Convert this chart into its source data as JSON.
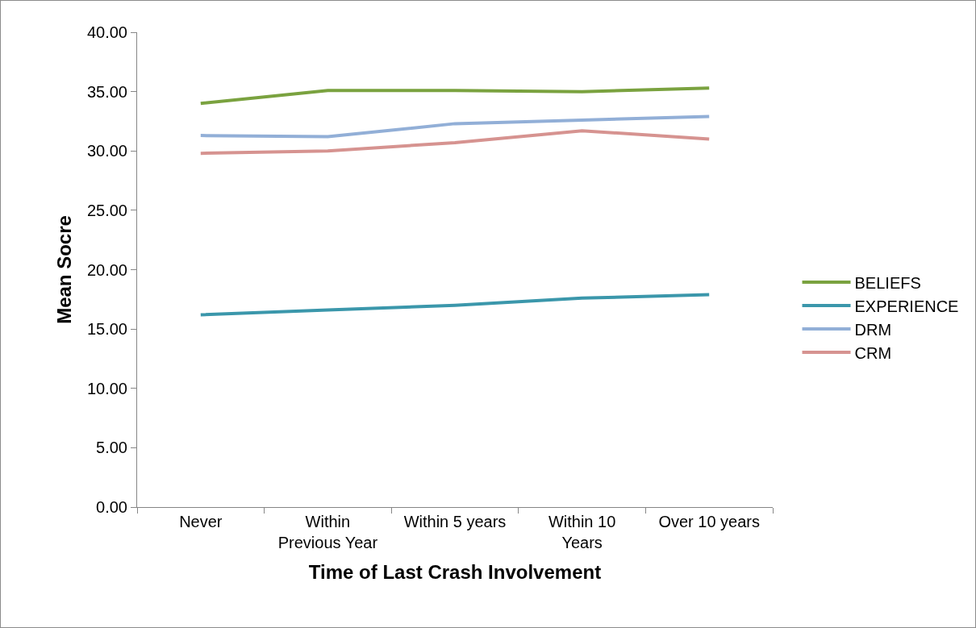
{
  "chart_data": {
    "type": "line",
    "xlabel": "Time of Last Crash Involvement",
    "ylabel": "Mean Socre",
    "categories": [
      "Never",
      "Within Previous Year",
      "Within 5 years",
      "Within 10 Years",
      "Over 10 years"
    ],
    "series": [
      {
        "name": "BELIEFS",
        "color": "#7aa23f",
        "values": [
          34.0,
          35.1,
          35.1,
          35.0,
          35.3
        ]
      },
      {
        "name": "EXPERIENCE",
        "color": "#3b97ab",
        "values": [
          16.2,
          16.6,
          17.0,
          17.6,
          17.9
        ]
      },
      {
        "name": "DRM",
        "color": "#92afd7",
        "values": [
          31.3,
          31.2,
          32.3,
          32.6,
          32.9
        ]
      },
      {
        "name": "CRM",
        "color": "#d69390",
        "values": [
          29.8,
          30.0,
          30.7,
          31.7,
          31.0
        ]
      }
    ],
    "ylim": [
      0,
      40
    ],
    "yticks": [
      {
        "value": 0,
        "label": "0.00"
      },
      {
        "value": 5,
        "label": "5.00"
      },
      {
        "value": 10,
        "label": "10.00"
      },
      {
        "value": 15,
        "label": "15.00"
      },
      {
        "value": 20,
        "label": "20.00"
      },
      {
        "value": 25,
        "label": "25.00"
      },
      {
        "value": 30,
        "label": "30.00"
      },
      {
        "value": 35,
        "label": "35.00"
      },
      {
        "value": 40,
        "label": "40.00"
      }
    ],
    "grid": false,
    "legend": "right",
    "marker": "none",
    "line_style": "solid"
  }
}
